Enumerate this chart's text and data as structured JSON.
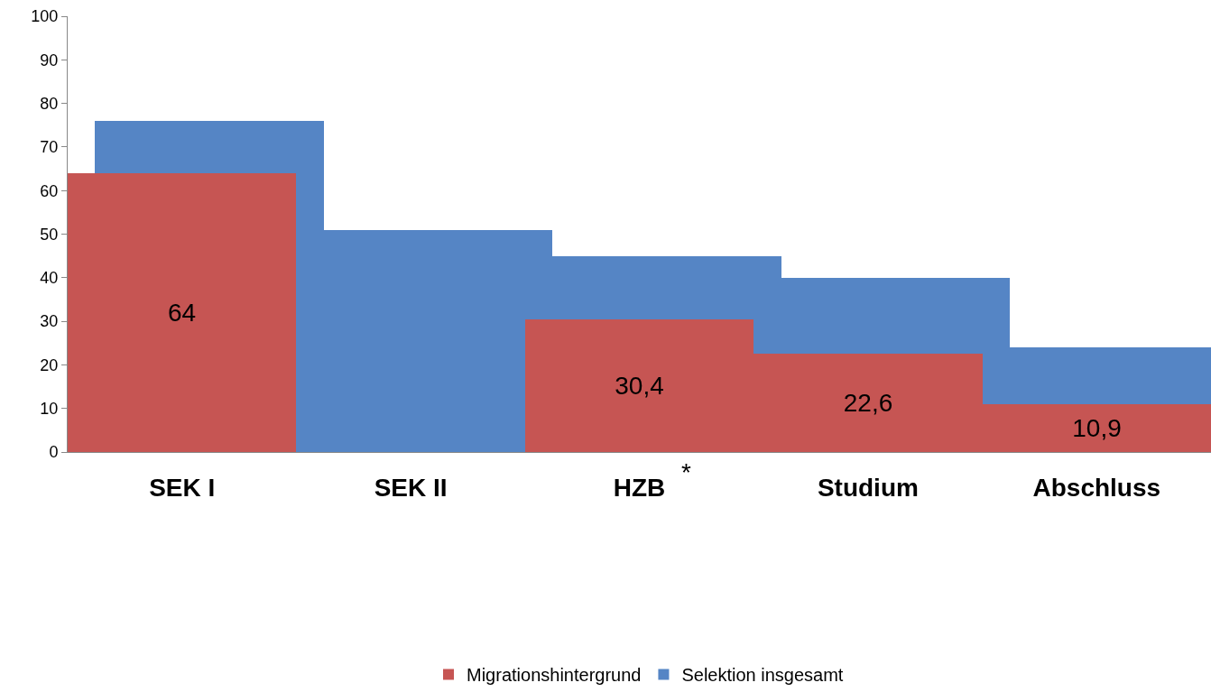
{
  "chart_data": {
    "type": "bar",
    "categories": [
      "SEK I",
      "SEK II",
      "HZB",
      "Studium",
      "Abschluss"
    ],
    "series": [
      {
        "name": "Selektion insgesamt",
        "color": "#5585c5",
        "values": [
          76,
          51,
          45,
          40,
          24
        ]
      },
      {
        "name": "Migrationshintergrund",
        "color": "#c65553",
        "values": [
          64,
          null,
          30.4,
          22.6,
          10.9
        ],
        "value_labels": [
          "64",
          null,
          "30,4",
          "22,6",
          "10,9"
        ]
      }
    ],
    "ylim": [
      0,
      100
    ],
    "yticks": [
      0,
      10,
      20,
      30,
      40,
      50,
      60,
      70,
      80,
      90,
      100
    ],
    "grid": false,
    "legend": "bottom",
    "annotations": [
      "*"
    ]
  }
}
